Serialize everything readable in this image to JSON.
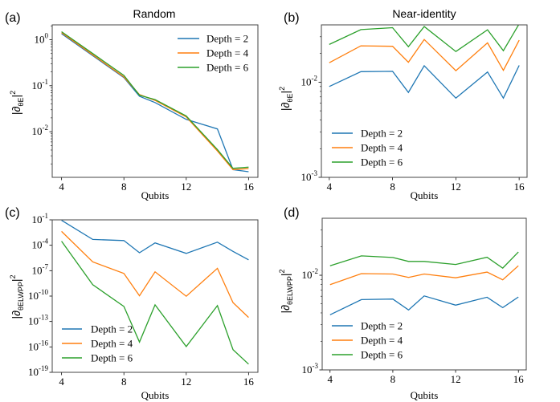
{
  "colors": {
    "depth2": "#1f77b4",
    "depth4": "#ff7f0e",
    "depth6": "#2ca02c",
    "axis": "#000000"
  },
  "chart_data": [
    {
      "panel_label": "(a)",
      "type": "line",
      "title": "Random",
      "xlabel": "Qubits",
      "ylabel": "|∂_θE|^2",
      "yscale": "log",
      "xlim": [
        3.4,
        16.6
      ],
      "ylim": [
        0.00102,
        2.1
      ],
      "xticks": [
        4,
        8,
        12,
        16
      ],
      "xtick_labels": [
        "4",
        "8",
        "12",
        "16"
      ],
      "yticks": [
        0.01,
        0.1,
        1
      ],
      "ytick_labels": [
        "10^-2",
        "10^-1",
        "10^0"
      ],
      "legend": "top-right",
      "x": [
        4,
        6,
        8,
        9,
        10,
        12,
        14,
        15,
        16
      ],
      "series": [
        {
          "name": "Depth = 2",
          "values": [
            1.35,
            0.45,
            0.15,
            0.059,
            0.043,
            0.0185,
            0.0115,
            0.0015,
            0.00135
          ]
        },
        {
          "name": "Depth = 4",
          "values": [
            1.42,
            0.47,
            0.155,
            0.064,
            0.048,
            0.021,
            0.0038,
            0.0015,
            0.00158
          ]
        },
        {
          "name": "Depth = 6",
          "values": [
            1.49,
            0.5,
            0.167,
            0.062,
            0.05,
            0.022,
            0.0041,
            0.0016,
            0.0017
          ]
        }
      ]
    },
    {
      "panel_label": "(b)",
      "type": "line",
      "title": "Near-identity",
      "xlabel": "Qubits",
      "ylabel": "|∂_θE|^2",
      "yscale": "log",
      "xlim": [
        3.5,
        16.5
      ],
      "ylim": [
        0.001,
        0.04
      ],
      "xticks": [
        4,
        8,
        12,
        16
      ],
      "xtick_labels": [
        "4",
        "8",
        "12",
        "16"
      ],
      "yticks": [
        0.001,
        0.01
      ],
      "ytick_labels": [
        "10^-3",
        "10^-2"
      ],
      "legend": "lower-left",
      "x": [
        4,
        6,
        8,
        9,
        10,
        12,
        14,
        15,
        16
      ],
      "series": [
        {
          "name": "Depth = 2",
          "values": [
            0.009,
            0.0129,
            0.013,
            0.0078,
            0.0149,
            0.0068,
            0.0128,
            0.0068,
            0.015
          ]
        },
        {
          "name": "Depth = 4",
          "values": [
            0.016,
            0.0241,
            0.0238,
            0.0162,
            0.0281,
            0.0132,
            0.0259,
            0.0133,
            0.0276
          ]
        },
        {
          "name": "Depth = 6",
          "values": [
            0.0249,
            0.0357,
            0.0374,
            0.0236,
            0.0384,
            0.021,
            0.0355,
            0.0214,
            0.041
          ]
        }
      ]
    },
    {
      "panel_label": "(c)",
      "type": "line",
      "title": "",
      "xlabel": "Qubits",
      "ylabel": "|∂_θE_LWPP|^2",
      "yscale": "log",
      "xlim": [
        3.4,
        16.6
      ],
      "ylim": [
        1e-19,
        0.1
      ],
      "xticks": [
        4,
        8,
        12,
        16
      ],
      "xtick_labels": [
        "4",
        "8",
        "12",
        "16"
      ],
      "yticks": [
        1e-19,
        1e-16,
        1e-13,
        1e-10,
        1e-07,
        0.0001,
        0.1
      ],
      "ytick_labels": [
        "10^-19",
        "10^-16",
        "10^-13",
        "10^-10",
        "10^-7",
        "10^-4",
        "10^-1"
      ],
      "legend": "lower-left",
      "x": [
        4,
        6,
        8,
        9,
        10,
        12,
        14,
        15,
        16
      ],
      "series": [
        {
          "name": "Depth = 2",
          "values": [
            0.087,
            0.00049,
            0.00036,
            1.3e-05,
            0.00019,
            1.1e-05,
            0.00023,
            1.9e-05,
            1.9e-06
          ]
        },
        {
          "name": "Depth = 4",
          "values": [
            0.0043,
            1.1e-06,
            4.7e-08,
            1.1e-10,
            7.3e-08,
            9.5e-11,
            1.9e-07,
            1.7e-11,
            3e-13
          ]
        },
        {
          "name": "Depth = 6",
          "values": [
            0.0003,
            2.2e-09,
            6e-12,
            3.7e-16,
            9.3e-12,
            1.1e-16,
            7.4e-12,
            4.8e-17,
            9.3e-19
          ]
        }
      ]
    },
    {
      "panel_label": "(d)",
      "type": "line",
      "title": "",
      "xlabel": "Qubits",
      "ylabel": "|∂_θE_LWPP|^2",
      "yscale": "log",
      "xlim": [
        3.5,
        16.5
      ],
      "ylim": [
        0.001,
        0.04
      ],
      "xticks": [
        4,
        8,
        12,
        16
      ],
      "xtick_labels": [
        "4",
        "8",
        "12",
        "16"
      ],
      "yticks": [
        0.001,
        0.01
      ],
      "ytick_labels": [
        "10^-3",
        "10^-2"
      ],
      "legend": "lower-left",
      "x": [
        4,
        6,
        8,
        9,
        10,
        12,
        14,
        15,
        16
      ],
      "series": [
        {
          "name": "Depth = 2",
          "values": [
            0.00382,
            0.00553,
            0.0056,
            0.0043,
            0.00605,
            0.00483,
            0.00586,
            0.00455,
            0.0059
          ]
        },
        {
          "name": "Depth = 4",
          "values": [
            0.00796,
            0.0104,
            0.0103,
            0.0095,
            0.0103,
            0.0094,
            0.0108,
            0.00896,
            0.0126
          ]
        },
        {
          "name": "Depth = 6",
          "values": [
            0.0126,
            0.016,
            0.0154,
            0.014,
            0.014,
            0.013,
            0.0155,
            0.0119,
            0.0176
          ]
        }
      ]
    }
  ]
}
